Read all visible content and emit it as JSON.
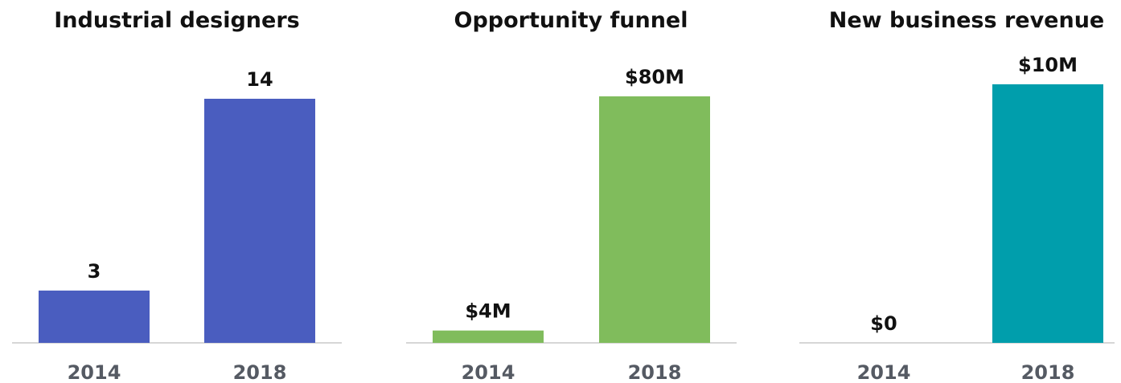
{
  "chart_data": [
    {
      "type": "bar",
      "title": "Industrial designers",
      "categories": [
        "2014",
        "2018"
      ],
      "values": [
        3,
        14
      ],
      "value_labels": [
        "3",
        "14"
      ],
      "ylim": [
        0,
        14
      ],
      "grid": false,
      "color": "#4a5dbf"
    },
    {
      "type": "bar",
      "title": "Opportunity funnel",
      "categories": [
        "2014",
        "2018"
      ],
      "values": [
        4,
        80
      ],
      "value_labels": [
        "$4M",
        "$80M"
      ],
      "unit": "$M",
      "ylim": [
        0,
        80
      ],
      "grid": false,
      "color": "#80bc5c"
    },
    {
      "type": "bar",
      "title": "New business revenue",
      "categories": [
        "2014",
        "2018"
      ],
      "values": [
        0,
        10
      ],
      "value_labels": [
        "$0",
        "$10M"
      ],
      "unit": "$M",
      "ylim": [
        0,
        10
      ],
      "grid": false,
      "color": "#009eac"
    }
  ]
}
